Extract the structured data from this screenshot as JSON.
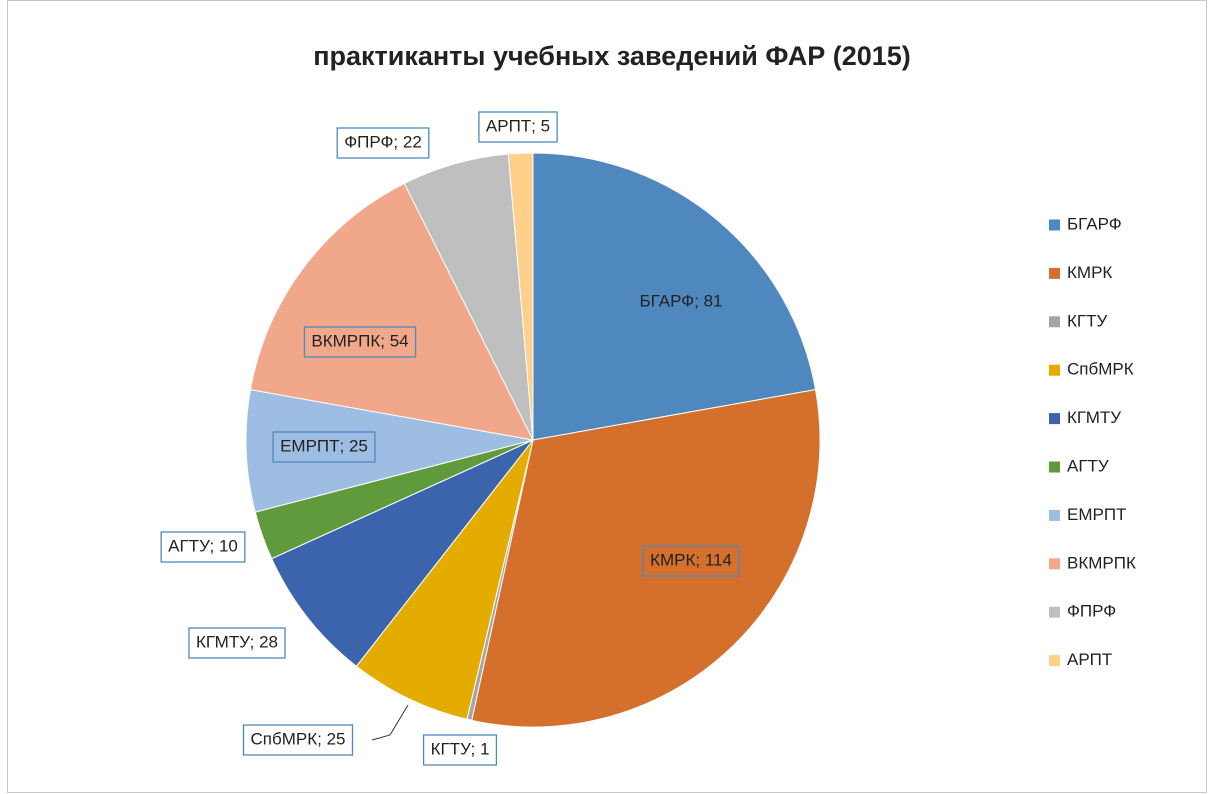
{
  "chart_data": {
    "type": "pie",
    "title": "практиканты учебных заведений ФАР (2015)",
    "categories": [
      "БГАРФ",
      "КМРК",
      "КГТУ",
      "СпбМРК",
      "КГМТУ",
      "АГТУ",
      "ЕМРПТ",
      "ВКМРПК",
      "ФПРФ",
      "АРПТ"
    ],
    "values": [
      81,
      114,
      1,
      25,
      28,
      10,
      25,
      54,
      22,
      5
    ],
    "value_labels": [
      "БГАРФ; 81",
      "КМРК; 114",
      "КГТУ; 1",
      "СпбМРК; 25",
      "КГМТУ; 28",
      "АГТУ; 10",
      "ЕМРПТ; 25",
      "ВКМРПК; 54",
      "ФПРФ; 22",
      "АРПТ; 5"
    ],
    "colors": [
      "#4f88bf",
      "#d4702b",
      "#a5a5a5",
      "#e5ac00",
      "#3b64ad",
      "#5f9a3c",
      "#9dbde3",
      "#f1a78a",
      "#bfbfbf",
      "#ffd08a"
    ],
    "legend": "right"
  }
}
